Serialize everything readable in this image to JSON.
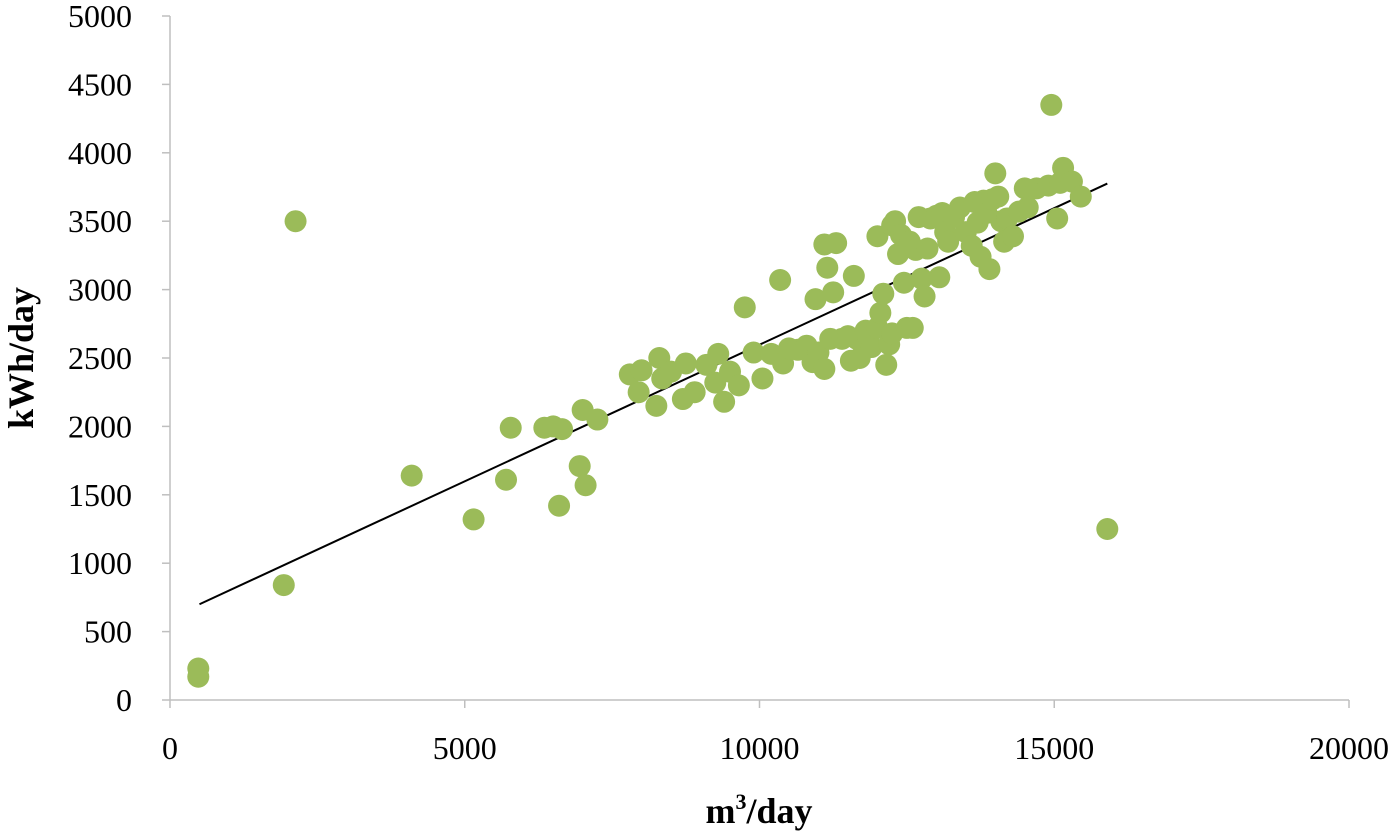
{
  "chart_data": {
    "type": "scatter",
    "title": "",
    "xlabel": "m³/day",
    "xlabel_base": "m",
    "xlabel_sup": "3",
    "xlabel_rest": "/day",
    "ylabel": "kWh/day",
    "xlim": [
      0,
      20000
    ],
    "ylim": [
      0,
      5000
    ],
    "x_ticks": [
      0,
      5000,
      10000,
      15000,
      20000
    ],
    "y_ticks": [
      0,
      500,
      1000,
      1500,
      2000,
      2500,
      3000,
      3500,
      4000,
      4500,
      5000
    ],
    "x_tick_labels": [
      "0",
      "5000",
      "10000",
      "15000",
      "20000"
    ],
    "y_tick_labels": [
      "0",
      "500",
      "1000",
      "1500",
      "2000",
      "2500",
      "3000",
      "3500",
      "4000",
      "4500",
      "5000"
    ],
    "grid": false,
    "legend": "none",
    "marker_color": "#9bbb59",
    "trendline": {
      "type": "linear",
      "x": [
        500,
        15900
      ],
      "y": [
        700,
        3775
      ],
      "color": "#000000"
    },
    "series": [
      {
        "points": [
          [
            480,
            230
          ],
          [
            480,
            170
          ],
          [
            1930,
            840
          ],
          [
            2130,
            3500
          ],
          [
            4100,
            1640
          ],
          [
            5150,
            1320
          ],
          [
            5700,
            1610
          ],
          [
            5780,
            1990
          ],
          [
            6350,
            1990
          ],
          [
            6500,
            2000
          ],
          [
            6600,
            1420
          ],
          [
            6650,
            1980
          ],
          [
            6950,
            1710
          ],
          [
            7000,
            2120
          ],
          [
            7050,
            1570
          ],
          [
            7250,
            2050
          ],
          [
            7800,
            2380
          ],
          [
            7950,
            2250
          ],
          [
            8000,
            2410
          ],
          [
            8250,
            2150
          ],
          [
            8300,
            2500
          ],
          [
            8350,
            2350
          ],
          [
            8500,
            2400
          ],
          [
            8700,
            2200
          ],
          [
            8750,
            2460
          ],
          [
            8900,
            2250
          ],
          [
            9100,
            2450
          ],
          [
            9250,
            2320
          ],
          [
            9300,
            2530
          ],
          [
            9400,
            2180
          ],
          [
            9500,
            2400
          ],
          [
            9650,
            2300
          ],
          [
            9750,
            2870
          ],
          [
            9900,
            2540
          ],
          [
            10050,
            2350
          ],
          [
            10200,
            2530
          ],
          [
            10350,
            3070
          ],
          [
            10400,
            2460
          ],
          [
            10500,
            2570
          ],
          [
            10650,
            2560
          ],
          [
            10800,
            2590
          ],
          [
            10900,
            2470
          ],
          [
            10950,
            2930
          ],
          [
            11000,
            2540
          ],
          [
            11100,
            2420
          ],
          [
            11100,
            3330
          ],
          [
            11150,
            3160
          ],
          [
            11200,
            2640
          ],
          [
            11250,
            2980
          ],
          [
            11300,
            3340
          ],
          [
            11400,
            2640
          ],
          [
            11500,
            2660
          ],
          [
            11550,
            2480
          ],
          [
            11600,
            3100
          ],
          [
            11650,
            2640
          ],
          [
            11700,
            2500
          ],
          [
            11800,
            2700
          ],
          [
            11850,
            2650
          ],
          [
            11900,
            2580
          ],
          [
            12000,
            3390
          ],
          [
            12000,
            2720
          ],
          [
            12050,
            2830
          ],
          [
            12100,
            2970
          ],
          [
            12150,
            2450
          ],
          [
            12200,
            2600
          ],
          [
            12250,
            3470
          ],
          [
            12250,
            2680
          ],
          [
            12300,
            3500
          ],
          [
            12350,
            3260
          ],
          [
            12400,
            3400
          ],
          [
            12450,
            3050
          ],
          [
            12500,
            2720
          ],
          [
            12550,
            3350
          ],
          [
            12600,
            2720
          ],
          [
            12650,
            3290
          ],
          [
            12700,
            3530
          ],
          [
            12750,
            3080
          ],
          [
            12800,
            2950
          ],
          [
            12850,
            3300
          ],
          [
            12900,
            3520
          ],
          [
            13000,
            3540
          ],
          [
            13050,
            3090
          ],
          [
            13100,
            3560
          ],
          [
            13150,
            3420
          ],
          [
            13200,
            3350
          ],
          [
            13300,
            3530
          ],
          [
            13400,
            3600
          ],
          [
            13500,
            3420
          ],
          [
            13600,
            3320
          ],
          [
            13650,
            3640
          ],
          [
            13700,
            3490
          ],
          [
            13750,
            3240
          ],
          [
            13800,
            3650
          ],
          [
            13850,
            3560
          ],
          [
            13900,
            3150
          ],
          [
            13950,
            3660
          ],
          [
            14000,
            3850
          ],
          [
            14050,
            3680
          ],
          [
            14100,
            3500
          ],
          [
            14150,
            3350
          ],
          [
            14200,
            3520
          ],
          [
            14300,
            3390
          ],
          [
            14400,
            3570
          ],
          [
            14500,
            3740
          ],
          [
            14550,
            3600
          ],
          [
            14700,
            3740
          ],
          [
            14900,
            3760
          ],
          [
            14950,
            4350
          ],
          [
            15050,
            3520
          ],
          [
            15100,
            3780
          ],
          [
            15150,
            3890
          ],
          [
            15300,
            3790
          ],
          [
            15450,
            3680
          ],
          [
            15900,
            1250
          ]
        ]
      }
    ]
  }
}
